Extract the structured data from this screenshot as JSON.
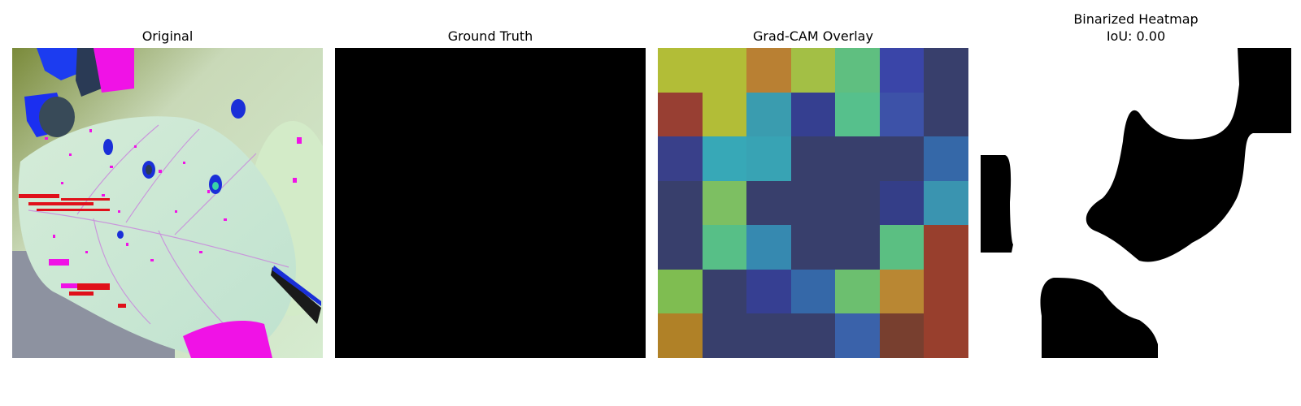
{
  "panels": [
    {
      "title": "Original"
    },
    {
      "title": "Ground Truth"
    },
    {
      "title": "Grad-CAM Overlay"
    },
    {
      "title": "Binarized Heatmap",
      "subtitle": "IoU: 0.00"
    }
  ],
  "gradcam_grid": [
    [
      "#b2bd37",
      "#b2bd37",
      "#b98033",
      "#a3bf45",
      "#5fbf80",
      "#3a45a8",
      "#383f6c"
    ],
    [
      "#983f33",
      "#b2bd37",
      "#3a9caf",
      "#353f90",
      "#56c08c",
      "#3d52a8",
      "#383f6c"
    ],
    [
      "#39408a",
      "#37a8b7",
      "#38a3b4",
      "#383f6c",
      "#383f6c",
      "#383f6c",
      "#3568a8"
    ],
    [
      "#383f6c",
      "#7dbf62",
      "#383f6c",
      "#383f6c",
      "#383f6c",
      "#343e88",
      "#3a94b0"
    ],
    [
      "#383f6c",
      "#57bf87",
      "#3689b0",
      "#383f6c",
      "#383f6c",
      "#5bbf82",
      "#983f2d"
    ],
    [
      "#7fbd51",
      "#383f6c",
      "#363f92",
      "#3568a8",
      "#6cbf6f",
      "#b98733",
      "#983f2d"
    ],
    [
      "#b08127",
      "#383f6c",
      "#383f6c",
      "#383f6c",
      "#3a62aa",
      "#783f2f",
      "#983f2d"
    ]
  ]
}
